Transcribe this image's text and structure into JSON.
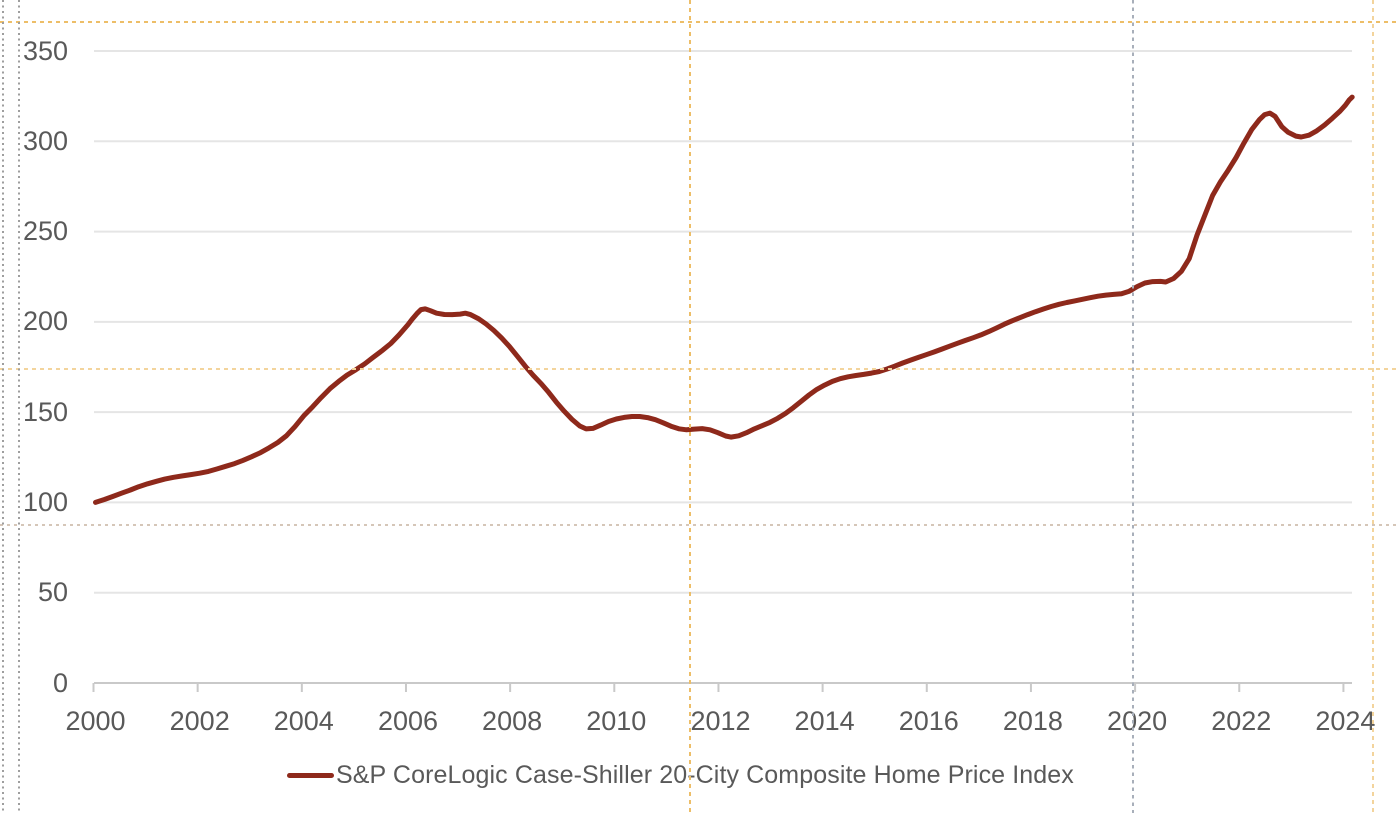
{
  "colors": {
    "series": "#8E291B",
    "axis_label": "#595959",
    "gridline": "#E5E5E5",
    "axis_line": "#C9C9C9",
    "guide_orange": "#EDBE68",
    "guide_orange_pale": "#F3D49C",
    "guide_tan": "#D5C6B8",
    "guide_gray": "#A8AFBA",
    "edge_dotted_gray": "#9E9E9E",
    "background": "#FFFFFF"
  },
  "chart_data": {
    "type": "line",
    "title": "",
    "xlabel": "",
    "ylabel": "",
    "grid": "horizontal",
    "legend_position": "bottom",
    "xlim": [
      2000,
      2024.3
    ],
    "ylim": [
      0,
      350
    ],
    "x_ticks": [
      2000,
      2002,
      2004,
      2006,
      2008,
      2010,
      2012,
      2014,
      2016,
      2018,
      2020,
      2022,
      2024
    ],
    "y_ticks": [
      0,
      50,
      100,
      150,
      200,
      250,
      300,
      350
    ],
    "series": [
      {
        "name": "S&P CoreLogic Case-Shiller 20-City Composite Home Price Index",
        "color": "#8E291B",
        "points": [
          [
            2000.0,
            100
          ],
          [
            2000.17,
            101.6
          ],
          [
            2000.33,
            103.3
          ],
          [
            2000.5,
            105.1
          ],
          [
            2000.67,
            106.9
          ],
          [
            2000.83,
            108.7
          ],
          [
            2001.0,
            110.3
          ],
          [
            2001.17,
            111.7
          ],
          [
            2001.33,
            112.9
          ],
          [
            2001.5,
            113.9
          ],
          [
            2001.67,
            114.7
          ],
          [
            2001.83,
            115.4
          ],
          [
            2002.0,
            116.2
          ],
          [
            2002.17,
            117.2
          ],
          [
            2002.33,
            118.5
          ],
          [
            2002.5,
            120.0
          ],
          [
            2002.67,
            121.5
          ],
          [
            2002.83,
            123.3
          ],
          [
            2003.0,
            125.3
          ],
          [
            2003.17,
            127.6
          ],
          [
            2003.33,
            130.2
          ],
          [
            2003.5,
            133.2
          ],
          [
            2003.67,
            137.0
          ],
          [
            2003.83,
            142.0
          ],
          [
            2004.0,
            148.0
          ],
          [
            2004.17,
            153.0
          ],
          [
            2004.33,
            158.0
          ],
          [
            2004.5,
            163.0
          ],
          [
            2004.67,
            167.0
          ],
          [
            2004.83,
            170.5
          ],
          [
            2005.0,
            173.5
          ],
          [
            2005.17,
            176.8
          ],
          [
            2005.33,
            180.3
          ],
          [
            2005.5,
            184.0
          ],
          [
            2005.67,
            188.0
          ],
          [
            2005.83,
            192.8
          ],
          [
            2006.0,
            198.5
          ],
          [
            2006.08,
            201.5
          ],
          [
            2006.17,
            204.5
          ],
          [
            2006.25,
            206.8
          ],
          [
            2006.33,
            207.2
          ],
          [
            2006.43,
            206.2
          ],
          [
            2006.55,
            204.8
          ],
          [
            2006.7,
            204.1
          ],
          [
            2006.85,
            204.0
          ],
          [
            2007.0,
            204.3
          ],
          [
            2007.1,
            204.8
          ],
          [
            2007.2,
            204.0
          ],
          [
            2007.35,
            201.8
          ],
          [
            2007.5,
            198.8
          ],
          [
            2007.65,
            195.2
          ],
          [
            2007.8,
            191.0
          ],
          [
            2007.95,
            186.3
          ],
          [
            2008.1,
            181.0
          ],
          [
            2008.25,
            175.5
          ],
          [
            2008.4,
            170.5
          ],
          [
            2008.55,
            166.0
          ],
          [
            2008.7,
            161.0
          ],
          [
            2008.85,
            155.5
          ],
          [
            2009.0,
            150.5
          ],
          [
            2009.15,
            146.0
          ],
          [
            2009.3,
            142.3
          ],
          [
            2009.42,
            140.7
          ],
          [
            2009.55,
            141.0
          ],
          [
            2009.7,
            142.8
          ],
          [
            2009.85,
            144.8
          ],
          [
            2010.0,
            146.2
          ],
          [
            2010.15,
            147.1
          ],
          [
            2010.3,
            147.6
          ],
          [
            2010.45,
            147.6
          ],
          [
            2010.6,
            147.0
          ],
          [
            2010.75,
            145.8
          ],
          [
            2010.9,
            144.1
          ],
          [
            2011.05,
            142.2
          ],
          [
            2011.2,
            140.8
          ],
          [
            2011.35,
            140.2
          ],
          [
            2011.5,
            140.6
          ],
          [
            2011.65,
            140.9
          ],
          [
            2011.8,
            140.2
          ],
          [
            2011.95,
            138.6
          ],
          [
            2012.1,
            136.8
          ],
          [
            2012.2,
            136.2
          ],
          [
            2012.35,
            136.9
          ],
          [
            2012.5,
            138.6
          ],
          [
            2012.65,
            140.7
          ],
          [
            2012.8,
            142.5
          ],
          [
            2012.95,
            144.3
          ],
          [
            2013.1,
            146.6
          ],
          [
            2013.25,
            149.3
          ],
          [
            2013.4,
            152.5
          ],
          [
            2013.55,
            156.0
          ],
          [
            2013.7,
            159.5
          ],
          [
            2013.85,
            162.6
          ],
          [
            2014.0,
            165.0
          ],
          [
            2014.15,
            167.0
          ],
          [
            2014.3,
            168.5
          ],
          [
            2014.45,
            169.6
          ],
          [
            2014.6,
            170.3
          ],
          [
            2014.75,
            170.9
          ],
          [
            2014.9,
            171.6
          ],
          [
            2015.05,
            172.5
          ],
          [
            2015.2,
            173.9
          ],
          [
            2015.35,
            175.5
          ],
          [
            2015.5,
            177.2
          ],
          [
            2015.65,
            178.8
          ],
          [
            2015.8,
            180.3
          ],
          [
            2015.95,
            181.8
          ],
          [
            2016.1,
            183.3
          ],
          [
            2016.25,
            184.9
          ],
          [
            2016.4,
            186.5
          ],
          [
            2016.55,
            188.1
          ],
          [
            2016.7,
            189.7
          ],
          [
            2016.85,
            191.2
          ],
          [
            2017.0,
            192.8
          ],
          [
            2017.15,
            194.6
          ],
          [
            2017.3,
            196.6
          ],
          [
            2017.45,
            198.7
          ],
          [
            2017.6,
            200.6
          ],
          [
            2017.75,
            202.3
          ],
          [
            2017.9,
            204.0
          ],
          [
            2018.05,
            205.6
          ],
          [
            2018.2,
            207.1
          ],
          [
            2018.35,
            208.5
          ],
          [
            2018.5,
            209.7
          ],
          [
            2018.65,
            210.7
          ],
          [
            2018.8,
            211.6
          ],
          [
            2018.95,
            212.5
          ],
          [
            2019.1,
            213.4
          ],
          [
            2019.25,
            214.2
          ],
          [
            2019.4,
            214.8
          ],
          [
            2019.55,
            215.2
          ],
          [
            2019.7,
            215.6
          ],
          [
            2019.85,
            217.0
          ],
          [
            2020.0,
            219.5
          ],
          [
            2020.15,
            221.5
          ],
          [
            2020.3,
            222.3
          ],
          [
            2020.45,
            222.4
          ],
          [
            2020.55,
            222.1
          ],
          [
            2020.7,
            224.0
          ],
          [
            2020.85,
            228.0
          ],
          [
            2021.0,
            235.0
          ],
          [
            2021.15,
            248.0
          ],
          [
            2021.3,
            259.0
          ],
          [
            2021.45,
            270.0
          ],
          [
            2021.6,
            277.5
          ],
          [
            2021.75,
            284.0
          ],
          [
            2021.9,
            291.0
          ],
          [
            2022.05,
            299.0
          ],
          [
            2022.2,
            306.5
          ],
          [
            2022.35,
            312.0
          ],
          [
            2022.45,
            314.8
          ],
          [
            2022.55,
            315.6
          ],
          [
            2022.65,
            313.8
          ],
          [
            2022.78,
            308.0
          ],
          [
            2022.9,
            305.0
          ],
          [
            2023.05,
            302.9
          ],
          [
            2023.15,
            302.4
          ],
          [
            2023.3,
            303.4
          ],
          [
            2023.45,
            305.8
          ],
          [
            2023.6,
            309.0
          ],
          [
            2023.75,
            312.8
          ],
          [
            2023.9,
            316.8
          ],
          [
            2024.0,
            320.0
          ],
          [
            2024.07,
            322.8
          ],
          [
            2024.13,
            324.5
          ]
        ]
      }
    ]
  }
}
